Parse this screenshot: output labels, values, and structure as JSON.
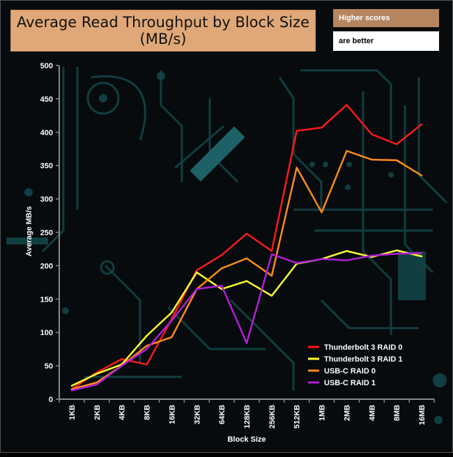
{
  "title_line1": "Average Read Throughput by Block Size",
  "title_line2": "(MB/s)",
  "note_line1": "Higher scores",
  "note_line2": "are better",
  "chart_data": {
    "type": "line",
    "title": "Average Read Throughput by Block Size (MB/s)",
    "xlabel": "Block Size",
    "ylabel": "Average MB/s",
    "ylim": [
      0,
      500
    ],
    "yticks": [
      0,
      50,
      100,
      150,
      200,
      250,
      300,
      350,
      400,
      450,
      500
    ],
    "grid": false,
    "legend_position": "bottom-right",
    "categories": [
      "1KB",
      "2KB",
      "4KB",
      "8KB",
      "16KB",
      "32KB",
      "64KB",
      "128KB",
      "256KB",
      "512KB",
      "1MB",
      "2MB",
      "4MB",
      "8MB",
      "16MB"
    ],
    "series": [
      {
        "name": "Thunderbolt 3 RAID 0",
        "color": "#ff1a1a",
        "values": [
          15,
          40,
          60,
          52,
          120,
          193,
          216,
          248,
          222,
          402,
          407,
          441,
          397,
          382,
          412
        ]
      },
      {
        "name": "Thunderbolt 3 RAID 1",
        "color": "#ffff33",
        "values": [
          20,
          38,
          52,
          95,
          130,
          190,
          165,
          177,
          155,
          203,
          210,
          222,
          213,
          223,
          214
        ]
      },
      {
        "name": "USB-C RAID 0",
        "color": "#ff8c1a",
        "values": [
          15,
          25,
          50,
          80,
          93,
          165,
          196,
          211,
          185,
          347,
          280,
          372,
          359,
          358,
          335
        ]
      },
      {
        "name": "USB-C RAID 1",
        "color": "#b01fd6",
        "values": [
          13,
          22,
          50,
          75,
          118,
          165,
          170,
          84,
          217,
          204,
          210,
          208,
          215,
          218,
          219
        ]
      }
    ]
  }
}
